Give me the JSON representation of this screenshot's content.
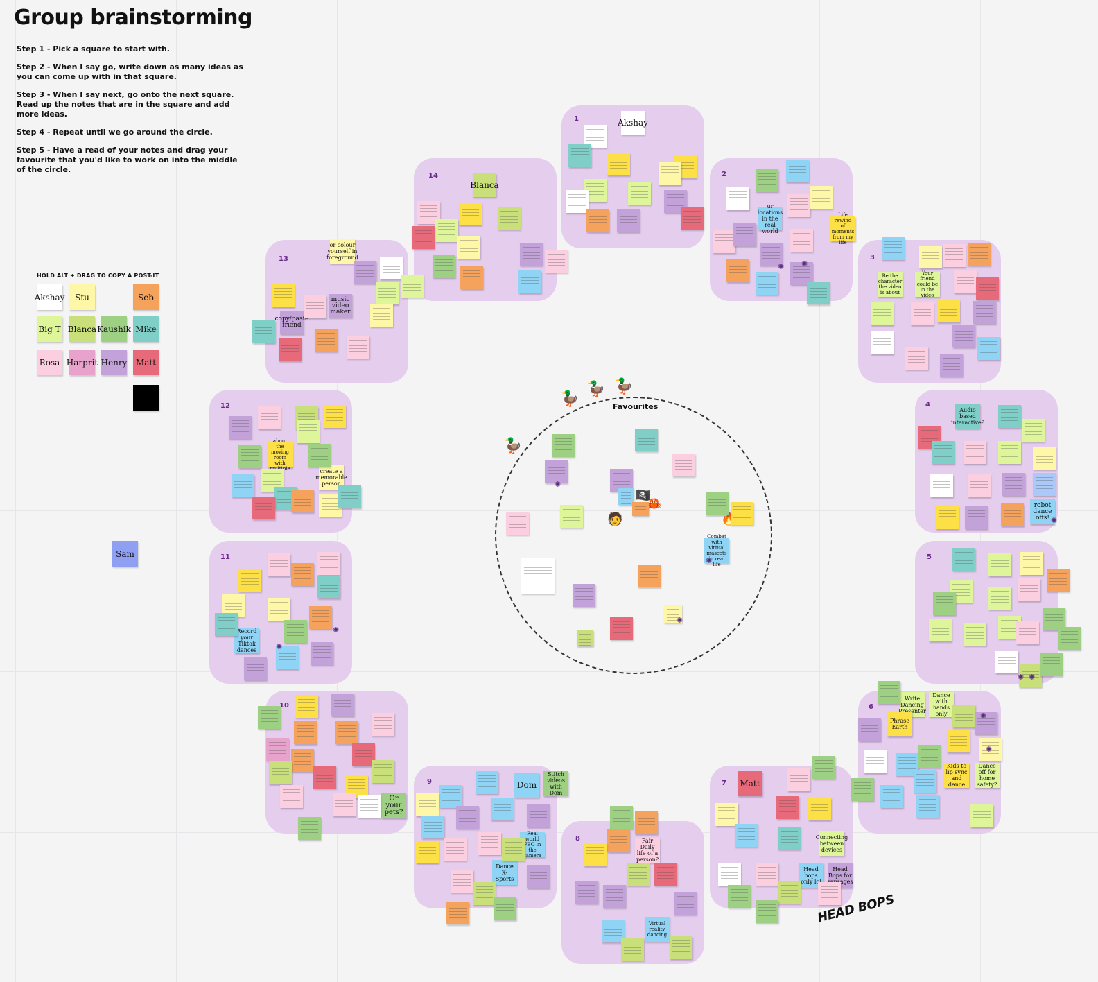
{
  "title": "Group brainstorming",
  "steps": [
    "Step 1 - Pick a square to start with.",
    "Step 2 - When I say go, write down as many ideas as you can come up with in that square.",
    "Step 3 - When I say next, go onto the next square. Read up the notes that are in the square and add more ideas.",
    "Step 4 - Repeat until we go around the circle.",
    "Step 5 - Have a read of your notes and drag your favourite that you'd like to work on into the middle of the circle."
  ],
  "palette": {
    "label": "HOLD ALT + DRAG TO COPY A POST-IT",
    "names": [
      "Akshay",
      "Stu",
      "Seb",
      "Big T",
      "Blanca",
      "Kaushik",
      "Mike",
      "Rosa",
      "Harprit",
      "Henry",
      "Matt"
    ],
    "colors": {
      "Akshay": "#ffffff",
      "Stu": "#fff7a8",
      "Seb": "#f4a25c",
      "Big T": "#dff59a",
      "Blanca": "#c9e07a",
      "Kaushik": "#9ed083",
      "Mike": "#7fcfc8",
      "Rosa": "#fbcfe0",
      "Harprit": "#e8a3cc",
      "Henry": "#c2a2d8",
      "Matt": "#e66a7a",
      "Black": "#000000"
    }
  },
  "sam_label": "Sam",
  "favourites_label": "Favourites",
  "zones": [
    "1",
    "2",
    "3",
    "4",
    "5",
    "6",
    "7",
    "8",
    "9",
    "10",
    "11",
    "12",
    "13",
    "14"
  ],
  "zone_labels": {
    "z1": "Akshay",
    "z14": "Blanca",
    "z13": [
      "or colour yourself in foreground",
      "music video maker",
      "copy/paste friend"
    ],
    "z2": [
      "ur locations in the real world",
      "Life rewind of moments from my life"
    ],
    "z3": [
      "Be the character the video is about",
      "Your friend could be in the video"
    ],
    "z4": [
      "Audio based interactive?",
      "robot dance offs!"
    ],
    "z6": [
      "Write Dancing Presenter",
      "Dance with hands only",
      "Phrase Earth",
      "Kids to lip sync and dance",
      "Dance off for home safety?"
    ],
    "z7": [
      "Matt",
      "Connecting between devices",
      "Head bops only lol",
      "Head Bops for sausages"
    ],
    "z8": [
      "Fair Daily life of a person?",
      "Virtual reality dancing"
    ],
    "z9": [
      "Dom",
      "Dance X-Sports",
      "Real world FBO in the camera",
      "Stitch videos with Dom"
    ],
    "z10": [
      "Or your pets?"
    ],
    "z11": [
      "Record your Tiktok dances"
    ],
    "z12": [
      "create a memorable person",
      "about the moving room with multiple"
    ],
    "fav": [
      "Combat with virtual mascots in real life"
    ]
  },
  "head_bops": "HEAD BOPS"
}
